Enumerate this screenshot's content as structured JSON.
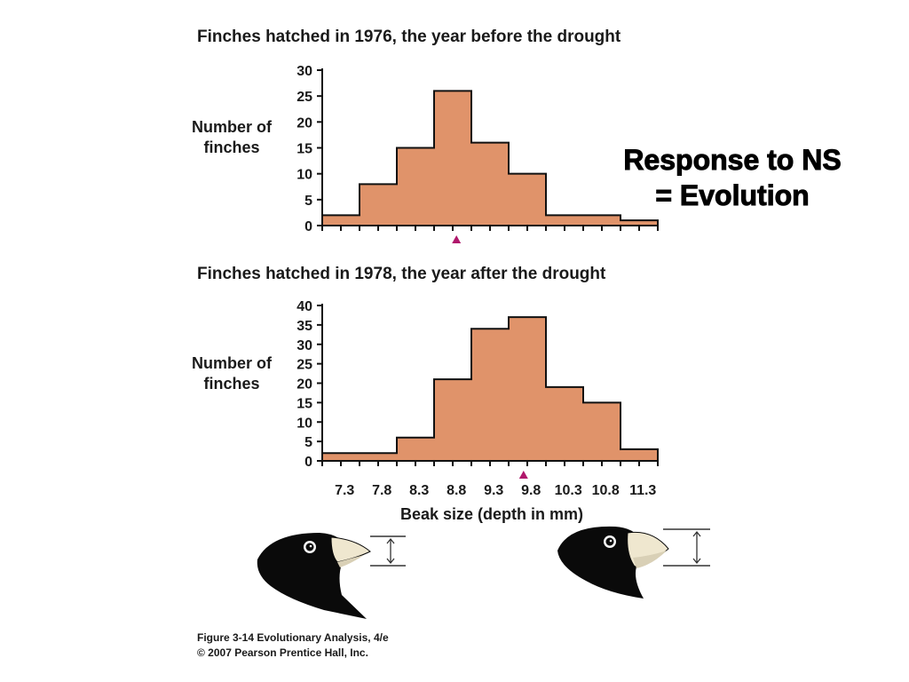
{
  "headline": {
    "line1": "Response to NS",
    "line2": "= Evolution"
  },
  "caption": {
    "line1": "Figure 3-14  Evolutionary Analysis, 4/e",
    "line2": "© 2007 Pearson Prentice Hall, Inc."
  },
  "colors": {
    "bar_fill": "#e0936a",
    "bar_stroke": "#111111",
    "marker": "#b0186c"
  },
  "icons": [
    "finch-head-small-beak-icon",
    "finch-head-large-beak-icon",
    "measurement-arrow-icon"
  ],
  "chart_data": [
    {
      "type": "bar",
      "title": "Finches hatched in 1976, the year before the drought",
      "ylabel": "Number of finches",
      "xlabel": "",
      "bin_width": 0.5,
      "bin_starts": [
        7.0,
        7.5,
        8.0,
        8.5,
        9.0,
        9.5,
        10.0,
        10.5,
        11.0
      ],
      "values": [
        2,
        8,
        15,
        26,
        16,
        10,
        2,
        2,
        1
      ],
      "yticks": [
        0,
        5,
        10,
        15,
        20,
        25,
        30
      ],
      "ylim": [
        0,
        30
      ],
      "mean_marker": 8.8,
      "show_xticklabels": false
    },
    {
      "type": "bar",
      "title": "Finches hatched in 1978, the year after the drought",
      "ylabel": "Number of finches",
      "xlabel": "Beak size (depth in mm)",
      "bin_width": 0.5,
      "bin_starts": [
        7.0,
        7.5,
        8.0,
        8.5,
        9.0,
        9.5,
        10.0,
        10.5,
        11.0
      ],
      "values": [
        2,
        2,
        6,
        21,
        34,
        37,
        19,
        15,
        3
      ],
      "yticks": [
        0,
        5,
        10,
        15,
        20,
        25,
        30,
        35,
        40
      ],
      "ylim": [
        0,
        40
      ],
      "mean_marker": 9.7,
      "xticklabels": [
        "7.3",
        "7.8",
        "8.3",
        "8.8",
        "9.3",
        "9.8",
        "10.3",
        "10.8",
        "11.3"
      ],
      "xtick_values": [
        7.3,
        7.8,
        8.3,
        8.8,
        9.3,
        9.8,
        10.3,
        10.8,
        11.3
      ],
      "show_xticklabels": true
    }
  ]
}
